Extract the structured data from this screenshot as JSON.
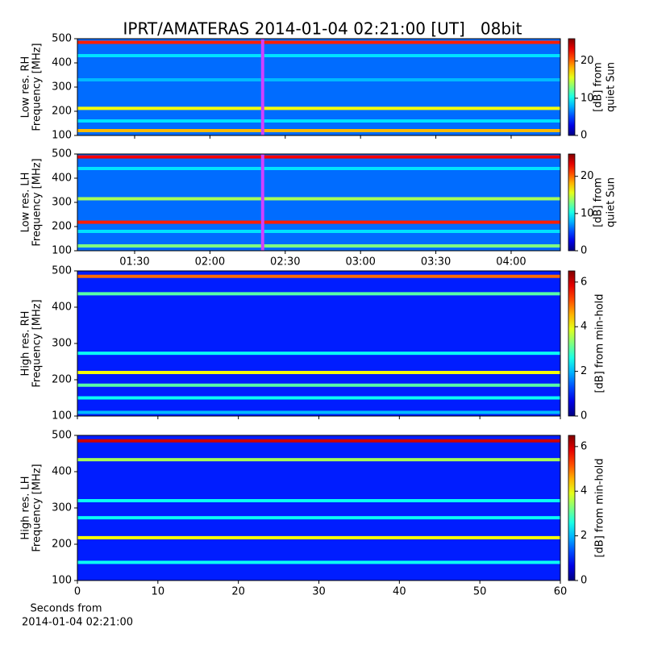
{
  "title": "IPRT/AMATERAS 2014-01-04 02:21:00 [UT]   08bit",
  "chart_data": [
    {
      "type": "heatmap",
      "ylabel": [
        "Low res. RH",
        "Frequency [MHz]"
      ],
      "xlim": [
        67.2,
        259.6
      ],
      "xticks": [
        {
          "value": 90,
          "label": "01:30"
        },
        {
          "value": 120,
          "label": "02:00"
        },
        {
          "value": 150,
          "label": "02:30"
        },
        {
          "value": 180,
          "label": "03:00"
        },
        {
          "value": 210,
          "label": "03:30"
        },
        {
          "value": 240,
          "label": "04:00"
        }
      ],
      "show_xticklabels": false,
      "ylim": [
        100,
        500
      ],
      "yticks": [
        100,
        200,
        300,
        400,
        500
      ],
      "clim": [
        0,
        26
      ],
      "cticks": [
        0,
        10,
        20
      ],
      "clabel": [
        "[dB] from",
        "quiet Sun"
      ],
      "background_level": 6,
      "bands": [
        {
          "freq": 485,
          "level": 22
        },
        {
          "freq": 430,
          "level": 9
        },
        {
          "freq": 330,
          "level": 8
        },
        {
          "freq": 212,
          "level": 16
        },
        {
          "freq": 160,
          "level": 9
        },
        {
          "freq": 120,
          "level": 18
        }
      ],
      "marker": 141,
      "marker_color": "#d040ff"
    },
    {
      "type": "heatmap",
      "ylabel": [
        "Low res. LH",
        "Frequency [MHz]"
      ],
      "xlim": [
        67.2,
        259.6
      ],
      "xticks": [
        {
          "value": 90,
          "label": "01:30"
        },
        {
          "value": 120,
          "label": "02:00"
        },
        {
          "value": 150,
          "label": "02:30"
        },
        {
          "value": 180,
          "label": "03:00"
        },
        {
          "value": 210,
          "label": "03:30"
        },
        {
          "value": 240,
          "label": "04:00"
        }
      ],
      "show_xticklabels": true,
      "ylim": [
        100,
        500
      ],
      "yticks": [
        100,
        200,
        300,
        400,
        500
      ],
      "clim": [
        0,
        26
      ],
      "cticks": [
        0,
        10,
        20
      ],
      "clabel": [
        "[dB] from",
        "quiet Sun"
      ],
      "background_level": 6,
      "bands": [
        {
          "freq": 488,
          "level": 23
        },
        {
          "freq": 440,
          "level": 9
        },
        {
          "freq": 315,
          "level": 14
        },
        {
          "freq": 218,
          "level": 22
        },
        {
          "freq": 180,
          "level": 9
        },
        {
          "freq": 120,
          "level": 13
        }
      ],
      "marker": 141,
      "marker_color": "#d040ff"
    },
    {
      "type": "heatmap",
      "ylabel": [
        "High res. RH",
        "Frequency [MHz]"
      ],
      "xlim": [
        0,
        60
      ],
      "xticks": [
        0,
        10,
        20,
        30,
        40,
        50,
        60
      ],
      "show_xticklabels": false,
      "ylim": [
        100,
        500
      ],
      "yticks": [
        100,
        200,
        300,
        400,
        500
      ],
      "clim": [
        0,
        6.5
      ],
      "cticks": [
        0,
        2,
        4,
        6
      ],
      "clabel": [
        "[dB] from min-hold"
      ],
      "background_level": 1,
      "bands": [
        {
          "freq": 485,
          "level": 5
        },
        {
          "freq": 437,
          "level": 3
        },
        {
          "freq": 273,
          "level": 2.5
        },
        {
          "freq": 220,
          "level": 4
        },
        {
          "freq": 185,
          "level": 3
        },
        {
          "freq": 150,
          "level": 2.5
        },
        {
          "freq": 110,
          "level": 2
        }
      ]
    },
    {
      "type": "heatmap",
      "ylabel": [
        "High res. LH",
        "Frequency [MHz]"
      ],
      "xlim": [
        0,
        60
      ],
      "xticks": [
        0,
        10,
        20,
        30,
        40,
        50,
        60
      ],
      "show_xticklabels": true,
      "xlabel": [
        "Seconds from",
        "2014-01-04 02:21:00"
      ],
      "ylim": [
        100,
        500
      ],
      "yticks": [
        100,
        200,
        300,
        400,
        500
      ],
      "clim": [
        0,
        6.5
      ],
      "cticks": [
        0,
        2,
        4,
        6
      ],
      "clabel": [
        "[dB] from min-hold"
      ],
      "background_level": 1,
      "bands": [
        {
          "freq": 485,
          "level": 6
        },
        {
          "freq": 433,
          "level": 3.5
        },
        {
          "freq": 320,
          "level": 2.5
        },
        {
          "freq": 273,
          "level": 2.5
        },
        {
          "freq": 218,
          "level": 4
        },
        {
          "freq": 150,
          "level": 2.5
        }
      ]
    }
  ]
}
